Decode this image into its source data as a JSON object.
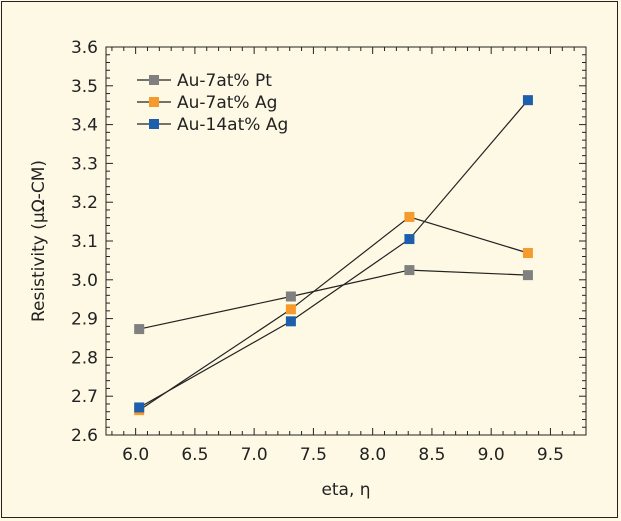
{
  "chart_data": {
    "type": "line",
    "xlabel": "eta, η",
    "ylabel": "Resistivity (μΩ-CM)",
    "xlim": [
      5.75,
      9.8
    ],
    "ylim": [
      2.6,
      3.6
    ],
    "xticks": [
      "6.0",
      "6.5",
      "7.0",
      "7.5",
      "8.0",
      "8.5",
      "9.0",
      "9.5"
    ],
    "yticks": [
      "2.6",
      "2.7",
      "2.8",
      "2.9",
      "3.0",
      "3.1",
      "3.2",
      "3.3",
      "3.4",
      "3.5",
      "3.6"
    ],
    "grid": false,
    "legend_position": "top-left",
    "series": [
      {
        "name": "Au-7at% Pt",
        "color": "#808080",
        "marker": "square",
        "x": [
          6.03,
          7.31,
          8.31,
          9.31
        ],
        "y": [
          2.873,
          2.957,
          3.025,
          3.012
        ]
      },
      {
        "name": "Au-7at% Ag",
        "color": "#f59a2c",
        "marker": "square",
        "x": [
          6.03,
          7.31,
          8.31,
          9.31
        ],
        "y": [
          2.664,
          2.924,
          3.162,
          3.069
        ]
      },
      {
        "name": "Au-14at% Ag",
        "color": "#1d5fad",
        "marker": "square",
        "x": [
          6.03,
          7.31,
          8.31,
          9.31
        ],
        "y": [
          2.671,
          2.893,
          3.105,
          3.463
        ]
      }
    ]
  }
}
